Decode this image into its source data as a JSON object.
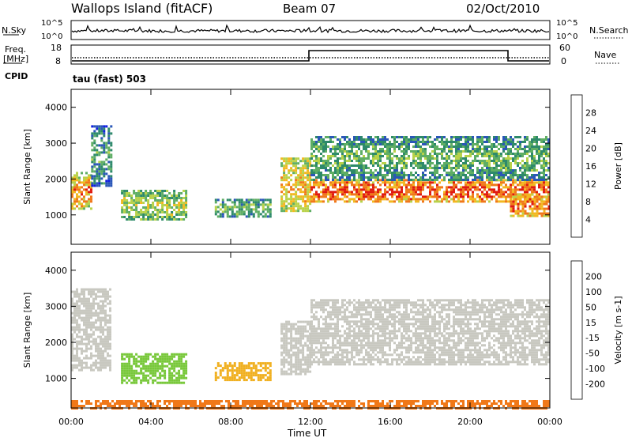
{
  "header": {
    "site": "Wallops Island (fitACF)",
    "beam": "Beam 07",
    "date": "02/Oct/2010",
    "cpid_label": "CPID",
    "cpid_value": "tau (fast) 503"
  },
  "noise_panel": {
    "left_label": "N.Sky",
    "right_label": "N.Search",
    "left_ticks": [
      "10^5",
      "10^0"
    ],
    "right_ticks": [
      "10^5",
      "10^0"
    ]
  },
  "freq_panel": {
    "left_label_1": "Freq.",
    "left_label_2": "[MHz]",
    "right_label": "Nave",
    "left_ticks": [
      "18",
      "8"
    ],
    "right_ticks": [
      "60",
      "0"
    ]
  },
  "colors": {
    "power": [
      "#1020e0",
      "#2a56b8",
      "#2e8a6a",
      "#5fae64",
      "#b8d24a",
      "#f2b820",
      "#f0781a",
      "#e01a10"
    ],
    "velocity": [
      "#e01a10",
      "#f07818",
      "#f0b020",
      "#c8c8c0",
      "#c8c8c0",
      "#78c83a",
      "#2c8c50",
      "#2040b0",
      "#1030c8"
    ]
  },
  "chart_data": [
    {
      "type": "heatmap",
      "title": "Power",
      "xlabel": "Time UT",
      "ylabel": "Slant Range [km]",
      "x_ticks": [
        "00:00",
        "04:00",
        "08:00",
        "12:00",
        "16:00",
        "20:00",
        "00:00"
      ],
      "y_ticks": [
        "1000",
        "2000",
        "3000",
        "4000"
      ],
      "xlim": [
        0,
        24
      ],
      "ylim": [
        180,
        4500
      ],
      "colorbar_label": "Power [dB]",
      "colorbar_ticks": [
        "28",
        "24",
        "20",
        "16",
        "12",
        "8",
        "4"
      ],
      "colorbar_range": [
        0,
        32
      ],
      "regions": [
        {
          "t0": 0.0,
          "t1": 1.0,
          "r0": 1200,
          "r1": 2200,
          "value": 22
        },
        {
          "t0": 1.0,
          "t1": 2.0,
          "r0": 1800,
          "r1": 3500,
          "value": 10
        },
        {
          "t0": 2.5,
          "t1": 5.8,
          "r0": 900,
          "r1": 1700,
          "value": 16
        },
        {
          "t0": 7.2,
          "t1": 10.0,
          "r0": 950,
          "r1": 1450,
          "value": 12
        },
        {
          "t0": 10.5,
          "t1": 12.0,
          "r0": 1100,
          "r1": 2600,
          "value": 20
        },
        {
          "t0": 12.0,
          "t1": 24.0,
          "r0": 1400,
          "r1": 2000,
          "value": 26
        },
        {
          "t0": 12.0,
          "t1": 24.0,
          "r0": 2000,
          "r1": 3200,
          "value": 12
        },
        {
          "t0": 22.0,
          "t1": 24.0,
          "r0": 950,
          "r1": 1600,
          "value": 24
        }
      ]
    },
    {
      "type": "heatmap",
      "title": "Velocity",
      "xlabel": "Time UT",
      "ylabel": "Slant Range [km]",
      "x_ticks": [
        "00:00",
        "04:00",
        "08:00",
        "12:00",
        "16:00",
        "20:00",
        "00:00"
      ],
      "y_ticks": [
        "1000",
        "2000",
        "3000",
        "4000"
      ],
      "xlim": [
        0,
        24
      ],
      "ylim": [
        180,
        4500
      ],
      "colorbar_label": "Velocity [m s-1]",
      "colorbar_ticks": [
        "200",
        "100",
        "50",
        "15",
        "-15",
        "-50",
        "-100",
        "-200"
      ],
      "regions": [
        {
          "t0": 0.0,
          "t1": 2.0,
          "r0": 1200,
          "r1": 3500,
          "value": 0
        },
        {
          "t0": 2.5,
          "t1": 5.8,
          "r0": 900,
          "r1": 1700,
          "value": 40
        },
        {
          "t0": 7.2,
          "t1": 10.0,
          "r0": 950,
          "r1": 1450,
          "value": -40
        },
        {
          "t0": 10.5,
          "t1": 12.0,
          "r0": 1100,
          "r1": 2600,
          "value": 0
        },
        {
          "t0": 12.0,
          "t1": 24.0,
          "r0": 1400,
          "r1": 3200,
          "value": 0
        },
        {
          "t0": 0.0,
          "t1": 24.0,
          "r0": 180,
          "r1": 400,
          "value": -80
        }
      ]
    }
  ]
}
